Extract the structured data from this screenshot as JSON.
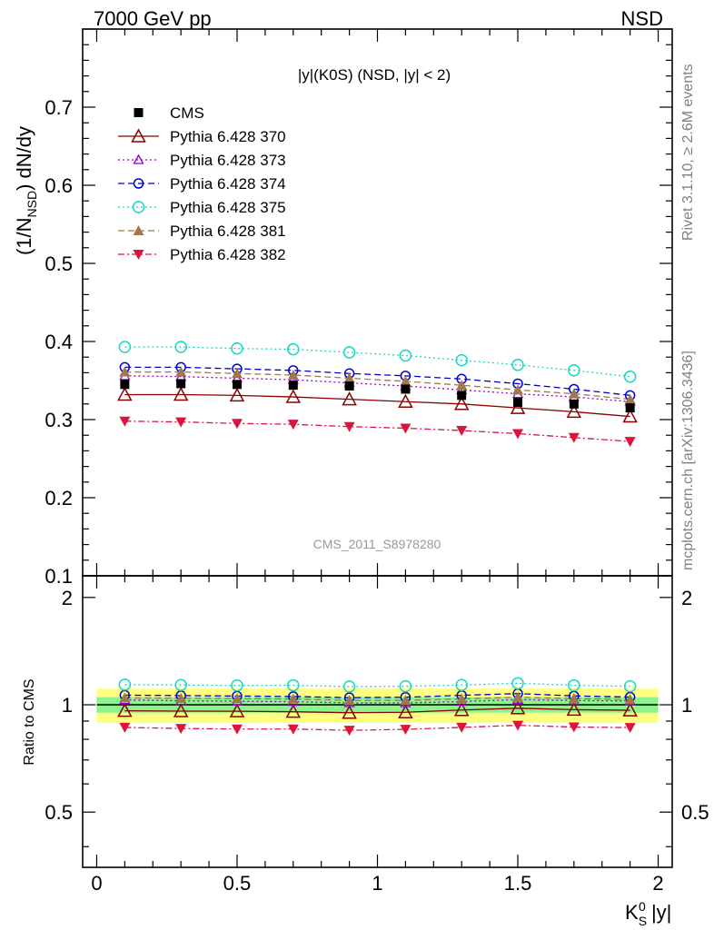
{
  "header": {
    "left_title": "7000 GeV pp",
    "right_title": "NSD",
    "plot_title": "|y|(K0S) (NSD, |y| < 2)",
    "watermark": "CMS_2011_S8978280",
    "side_top": "Rivet 3.1.10, ≥ 2.6M events",
    "side_bottom": "mcplots.cern.ch [arXiv:1306.3436]"
  },
  "axes": {
    "main_ylabel": "(1/N_NSD) dN/dy",
    "ratio_ylabel": "Ratio to CMS",
    "xlabel": "K_S^0 |y|",
    "x_ticks": [
      "0",
      "0.5",
      "1",
      "1.5",
      "2"
    ],
    "main_y_ticks": [
      "0.1",
      "0.2",
      "0.3",
      "0.4",
      "0.5",
      "0.6",
      "0.7"
    ],
    "ratio_y_ticks": [
      "0.5",
      "1",
      "2"
    ]
  },
  "chart_data": {
    "type": "line",
    "x": [
      0.1,
      0.3,
      0.5,
      0.7,
      0.9,
      1.1,
      1.3,
      1.5,
      1.7,
      1.9
    ],
    "xlim": [
      -0.05,
      2.05
    ],
    "ylim": [
      0.1,
      0.8
    ],
    "ratio_ylim": [
      0.35,
      2.3
    ],
    "ratio_log": true,
    "legend_position": "top-left",
    "series": [
      {
        "name": "CMS",
        "color": "#000000",
        "marker": "square",
        "dash": "",
        "values": [
          0.345,
          0.346,
          0.345,
          0.344,
          0.343,
          0.339,
          0.331,
          0.322,
          0.32,
          0.315
        ],
        "ratio": [
          1,
          1,
          1,
          1,
          1,
          1,
          1,
          1,
          1,
          1
        ]
      },
      {
        "name": "Pythia 6.428 370",
        "color": "#8b0000",
        "marker": "triangle-open",
        "dash": "",
        "values": [
          0.332,
          0.332,
          0.331,
          0.329,
          0.326,
          0.323,
          0.32,
          0.315,
          0.31,
          0.304
        ],
        "ratio": [
          0.962,
          0.96,
          0.959,
          0.956,
          0.95,
          0.953,
          0.967,
          0.978,
          0.969,
          0.965
        ]
      },
      {
        "name": "Pythia 6.428 373",
        "color": "#9400d3",
        "marker": "triangle-open-small",
        "dash": "2,3",
        "values": [
          0.356,
          0.355,
          0.353,
          0.351,
          0.347,
          0.343,
          0.338,
          0.333,
          0.329,
          0.323
        ],
        "ratio": [
          1.032,
          1.026,
          1.023,
          1.02,
          1.012,
          1.012,
          1.021,
          1.034,
          1.028,
          1.025
        ]
      },
      {
        "name": "Pythia 6.428 374",
        "color": "#0000cd",
        "marker": "circle-open",
        "dash": "7,4",
        "values": [
          0.367,
          0.367,
          0.365,
          0.363,
          0.359,
          0.356,
          0.352,
          0.346,
          0.339,
          0.331
        ],
        "ratio": [
          1.064,
          1.061,
          1.058,
          1.055,
          1.047,
          1.05,
          1.063,
          1.075,
          1.059,
          1.051
        ]
      },
      {
        "name": "Pythia 6.428 375",
        "color": "#1ad6c0",
        "marker": "circle-open-big",
        "dash": "2,3",
        "values": [
          0.393,
          0.393,
          0.391,
          0.39,
          0.386,
          0.382,
          0.376,
          0.37,
          0.363,
          0.355
        ],
        "ratio": [
          1.139,
          1.136,
          1.133,
          1.134,
          1.125,
          1.127,
          1.136,
          1.149,
          1.134,
          1.127
        ]
      },
      {
        "name": "Pythia 6.428 381",
        "color": "#a0784b",
        "marker": "triangle-filled",
        "dash": "7,4",
        "values": [
          0.361,
          0.361,
          0.359,
          0.357,
          0.353,
          0.349,
          0.344,
          0.338,
          0.333,
          0.326
        ],
        "ratio": [
          1.046,
          1.043,
          1.041,
          1.038,
          1.029,
          1.029,
          1.039,
          1.05,
          1.041,
          1.035
        ]
      },
      {
        "name": "Pythia 6.428 382",
        "color": "#dc143c",
        "marker": "triangle-down-filled",
        "dash": "7,3,2,3",
        "values": [
          0.298,
          0.297,
          0.295,
          0.294,
          0.291,
          0.289,
          0.286,
          0.282,
          0.277,
          0.272
        ],
        "ratio": [
          0.864,
          0.858,
          0.855,
          0.855,
          0.848,
          0.853,
          0.864,
          0.876,
          0.866,
          0.863
        ]
      }
    ],
    "bands": {
      "yellow": [
        0.89,
        1.11
      ],
      "green": [
        0.95,
        1.05
      ]
    }
  }
}
